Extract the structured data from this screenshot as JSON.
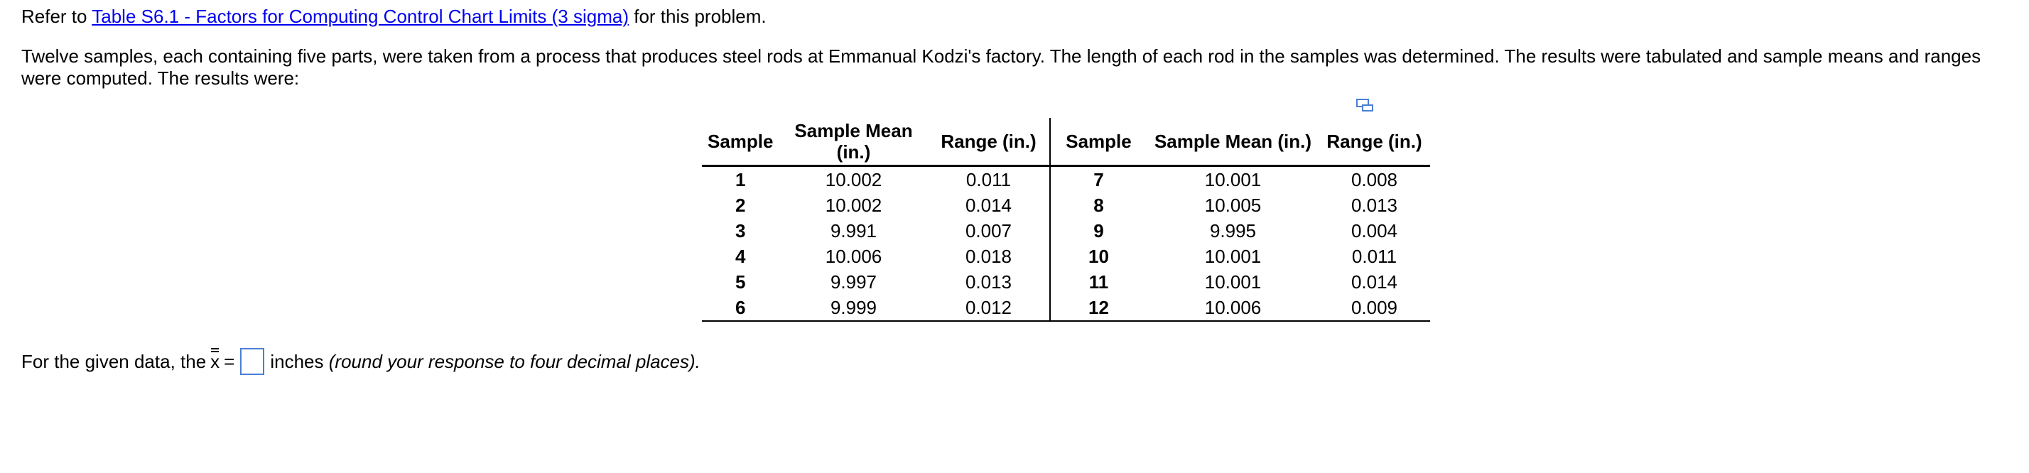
{
  "intro": {
    "prefix": "Refer to",
    "link": "Table S6.1 - Factors for Computing Control Chart Limits (3 sigma)",
    "suffix": "for this problem."
  },
  "paragraph": "Twelve samples, each containing five parts, were taken from a process that produces steel rods at Emmanual Kodzi's factory. The length of each rod in the samples was determined. The results were tabulated and sample means and ranges were computed. The results were:",
  "table": {
    "headers": [
      "Sample",
      "Sample Mean (in.)",
      "Range (in.)",
      "Sample",
      "Sample Mean (in.)",
      "Range (in.)"
    ],
    "rows": [
      [
        "1",
        "10.002",
        "0.011",
        "7",
        "10.001",
        "0.008"
      ],
      [
        "2",
        "10.002",
        "0.014",
        "8",
        "10.005",
        "0.013"
      ],
      [
        "3",
        "9.991",
        "0.007",
        "9",
        "9.995",
        "0.004"
      ],
      [
        "4",
        "10.006",
        "0.018",
        "10",
        "10.001",
        "0.011"
      ],
      [
        "5",
        "9.997",
        "0.013",
        "11",
        "10.001",
        "0.014"
      ],
      [
        "6",
        "9.999",
        "0.012",
        "12",
        "10.006",
        "0.009"
      ]
    ]
  },
  "question": {
    "prefix": "For the given data, the",
    "symbol": "x",
    "equals": "=",
    "unit": "inches",
    "hint": "(round your response to four decimal places)."
  }
}
